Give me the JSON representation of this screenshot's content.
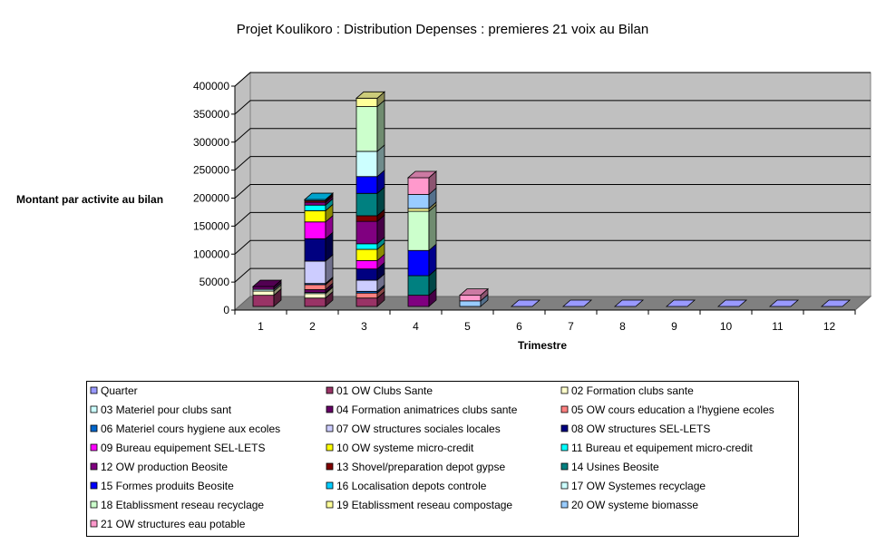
{
  "chart_data": {
    "type": "bar",
    "stacked": true,
    "three_d": true,
    "title": "Projet Koulikoro : Distribution Depenses : premieres 21 voix au Bilan",
    "xlabel": "Trimestre",
    "ylabel": "Montant par activite au bilan",
    "ylim": [
      0,
      400000
    ],
    "yticks": [
      0,
      50000,
      100000,
      150000,
      200000,
      250000,
      300000,
      350000,
      400000
    ],
    "grid": true,
    "legend_position": "bottom",
    "categories": [
      "1",
      "2",
      "3",
      "4",
      "5",
      "6",
      "7",
      "8",
      "9",
      "10",
      "11",
      "12"
    ],
    "series": [
      {
        "name": "Quarter",
        "color": "#9999FF",
        "values": [
          0,
          0,
          0,
          0,
          0,
          0,
          0,
          0,
          0,
          0,
          0,
          0
        ]
      },
      {
        "name": "01 OW Clubs Sante",
        "color": "#993366",
        "values": [
          20000,
          15000,
          15000,
          0,
          0,
          0,
          0,
          0,
          0,
          0,
          0,
          0
        ]
      },
      {
        "name": "02 Formation clubs sante",
        "color": "#FFFFCC",
        "values": [
          7500,
          8000,
          0,
          0,
          0,
          0,
          0,
          0,
          0,
          0,
          0,
          0
        ]
      },
      {
        "name": "03 Materiel pour clubs sant",
        "color": "#CCFFFF",
        "values": [
          3000,
          2000,
          0,
          0,
          0,
          0,
          0,
          0,
          0,
          0,
          0,
          0
        ]
      },
      {
        "name": "04 Formation animatrices clubs sante",
        "color": "#660066",
        "values": [
          5000,
          5000,
          0,
          0,
          0,
          0,
          0,
          0,
          0,
          0,
          0,
          0
        ]
      },
      {
        "name": "05 OW cours education a l'hygiene ecoles",
        "color": "#FF8080",
        "values": [
          0,
          9000,
          9000,
          0,
          0,
          0,
          0,
          0,
          0,
          0,
          0,
          0
        ]
      },
      {
        "name": "06 Materiel cours hygiene aux ecoles",
        "color": "#0066CC",
        "values": [
          0,
          2000,
          3000,
          0,
          0,
          0,
          0,
          0,
          0,
          0,
          0,
          0
        ]
      },
      {
        "name": "07 OW structures sociales locales",
        "color": "#CCCCFF",
        "values": [
          0,
          40000,
          20000,
          0,
          0,
          0,
          0,
          0,
          0,
          0,
          0,
          0
        ]
      },
      {
        "name": "08 OW structures SEL-LETS",
        "color": "#000080",
        "values": [
          0,
          40000,
          20000,
          0,
          0,
          0,
          0,
          0,
          0,
          0,
          0,
          0
        ]
      },
      {
        "name": "09 Bureau equipement SEL-LETS",
        "color": "#FF00FF",
        "values": [
          0,
          30000,
          15000,
          0,
          0,
          0,
          0,
          0,
          0,
          0,
          0,
          0
        ]
      },
      {
        "name": "10 OW systeme micro-credit",
        "color": "#FFFF00",
        "values": [
          0,
          20000,
          20000,
          0,
          0,
          0,
          0,
          0,
          0,
          0,
          0,
          0
        ]
      },
      {
        "name": "11 Bureau et equipement micro-credit",
        "color": "#00FFFF",
        "values": [
          0,
          10000,
          10000,
          0,
          0,
          0,
          0,
          0,
          0,
          0,
          0,
          0
        ]
      },
      {
        "name": "12 OW  production Beosite",
        "color": "#800080",
        "values": [
          0,
          5000,
          40000,
          20000,
          0,
          0,
          0,
          0,
          0,
          0,
          0,
          0
        ]
      },
      {
        "name": "13 Shovel/preparation depot gypse",
        "color": "#800000",
        "values": [
          0,
          3000,
          10000,
          0,
          0,
          0,
          0,
          0,
          0,
          0,
          0,
          0
        ]
      },
      {
        "name": "14 Usines Beosite",
        "color": "#008080",
        "values": [
          0,
          0,
          40000,
          35000,
          0,
          0,
          0,
          0,
          0,
          0,
          0,
          0
        ]
      },
      {
        "name": "15 Formes produits Beosite",
        "color": "#0000FF",
        "values": [
          0,
          0,
          30000,
          45000,
          0,
          0,
          0,
          0,
          0,
          0,
          0,
          0
        ]
      },
      {
        "name": "16 Localisation depots controle",
        "color": "#00CCFF",
        "values": [
          0,
          2000,
          0,
          0,
          0,
          0,
          0,
          0,
          0,
          0,
          0,
          0
        ]
      },
      {
        "name": "17 OW Systemes recyclage",
        "color": "#CCFFFF",
        "values": [
          0,
          0,
          45000,
          0,
          0,
          0,
          0,
          0,
          0,
          0,
          0,
          0
        ]
      },
      {
        "name": "18 Etablissment reseau recyclage",
        "color": "#CCFFCC",
        "values": [
          0,
          0,
          80000,
          70000,
          0,
          0,
          0,
          0,
          0,
          0,
          0,
          0
        ]
      },
      {
        "name": "19 Etablissment reseau compostage",
        "color": "#FFFF99",
        "values": [
          0,
          0,
          15000,
          5000,
          0,
          0,
          0,
          0,
          0,
          0,
          0,
          0
        ]
      },
      {
        "name": "20 OW systeme biomasse",
        "color": "#99CCFF",
        "values": [
          0,
          0,
          0,
          25000,
          10000,
          0,
          0,
          0,
          0,
          0,
          0,
          0
        ]
      },
      {
        "name": "21 OW structures eau potable",
        "color": "#FF99CC",
        "values": [
          0,
          0,
          0,
          30000,
          10000,
          0,
          0,
          0,
          0,
          0,
          0,
          0
        ]
      }
    ]
  }
}
